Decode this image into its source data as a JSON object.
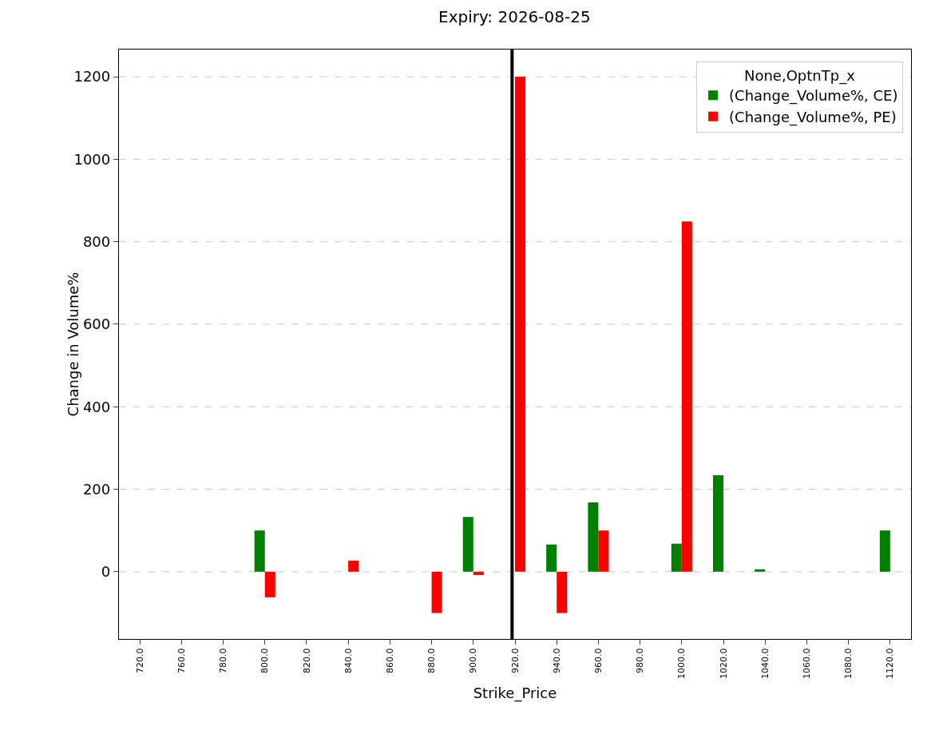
{
  "chart_data": {
    "type": "bar",
    "title": "Expiry: 2026-08-25",
    "xlabel": "Strike_Price",
    "ylabel": "Change in Volume%",
    "legend_title": "None,OptnTp_x",
    "categories": [
      "720.0",
      "760.0",
      "780.0",
      "800.0",
      "820.0",
      "840.0",
      "860.0",
      "880.0",
      "900.0",
      "920.0",
      "940.0",
      "960.0",
      "980.0",
      "1000.0",
      "1020.0",
      "1040.0",
      "1060.0",
      "1080.0",
      "1120.0"
    ],
    "series": [
      {
        "name": "(Change_Volume%, CE)",
        "color": "#008000",
        "values": [
          null,
          null,
          null,
          100,
          null,
          null,
          null,
          null,
          133,
          null,
          66,
          168,
          null,
          68,
          234,
          6,
          null,
          null,
          100
        ]
      },
      {
        "name": "(Change_Volume%, PE)",
        "color": "#ff0000",
        "values": [
          null,
          null,
          null,
          -62,
          null,
          27,
          null,
          -100,
          -8,
          1200,
          -100,
          100,
          null,
          849,
          null,
          null,
          null,
          null,
          null
        ]
      }
    ],
    "ylim": [
      -163,
      1266
    ],
    "yticks": [
      0,
      200,
      400,
      600,
      800,
      1000,
      1200
    ],
    "grid": "y",
    "legend": "top right",
    "ref_lines": [
      {
        "axis": "x",
        "value": "920.0",
        "color": "#000000"
      }
    ]
  }
}
